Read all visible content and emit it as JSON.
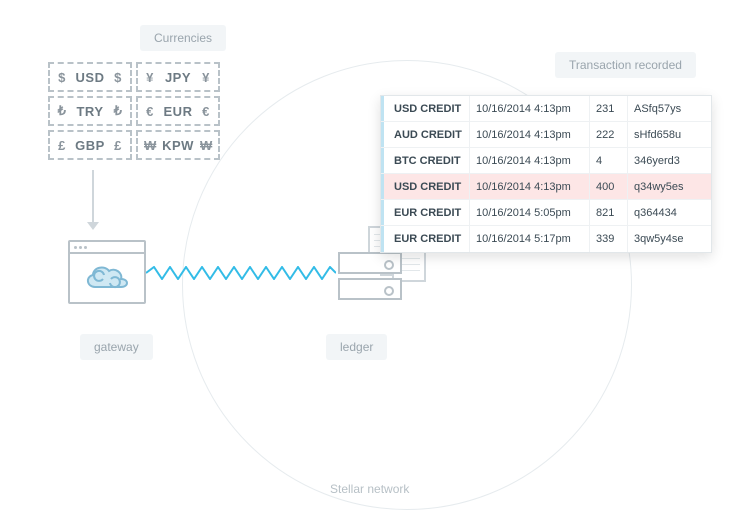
{
  "labels": {
    "currencies": "Currencies",
    "transaction_recorded": "Transaction recorded",
    "gateway": "gateway",
    "ledger": "ledger",
    "stellar": "Stellar network"
  },
  "currencies": [
    {
      "symbol_left": "$",
      "code": "USD",
      "symbol_right": "$"
    },
    {
      "symbol_left": "¥",
      "code": "JPY",
      "symbol_right": "¥"
    },
    {
      "symbol_left": "₺",
      "code": "TRY",
      "symbol_right": "₺"
    },
    {
      "symbol_left": "€",
      "code": "EUR",
      "symbol_right": "€"
    },
    {
      "symbol_left": "£",
      "code": "GBP",
      "symbol_right": "£"
    },
    {
      "symbol_left": "₩",
      "code": "KPW",
      "symbol_right": "₩"
    }
  ],
  "transactions": [
    {
      "type": "USD CREDIT",
      "time": "10/16/2014 4:13pm",
      "amount": "231",
      "id": "ASfq57ys",
      "highlight": false
    },
    {
      "type": "AUD CREDIT",
      "time": "10/16/2014 4:13pm",
      "amount": "222",
      "id": "sHfd658u",
      "highlight": false
    },
    {
      "type": "BTC CREDIT",
      "time": "10/16/2014 4:13pm",
      "amount": "4",
      "id": "346yerd3",
      "highlight": false
    },
    {
      "type": "USD CREDIT",
      "time": "10/16/2014 4:13pm",
      "amount": "400",
      "id": "q34wy5es",
      "highlight": true
    },
    {
      "type": "EUR CREDIT",
      "time": "10/16/2014 5:05pm",
      "amount": "821",
      "id": "q364434",
      "highlight": false
    },
    {
      "type": "EUR CREDIT",
      "time": "10/16/2014 5:17pm",
      "amount": "339",
      "id": "3qw5y4se",
      "highlight": false
    }
  ],
  "colors": {
    "label_bg": "#f2f5f7",
    "label_text": "#9aa5ad",
    "border": "#b9c2c8",
    "circle": "#e6ebee",
    "highlight_row": "#fde6e6",
    "table_accent": "#bfe3f2",
    "zigzag": "#33bce7",
    "cloud_fill": "#cfe8f3",
    "cloud_stroke": "#7fb8d4"
  }
}
